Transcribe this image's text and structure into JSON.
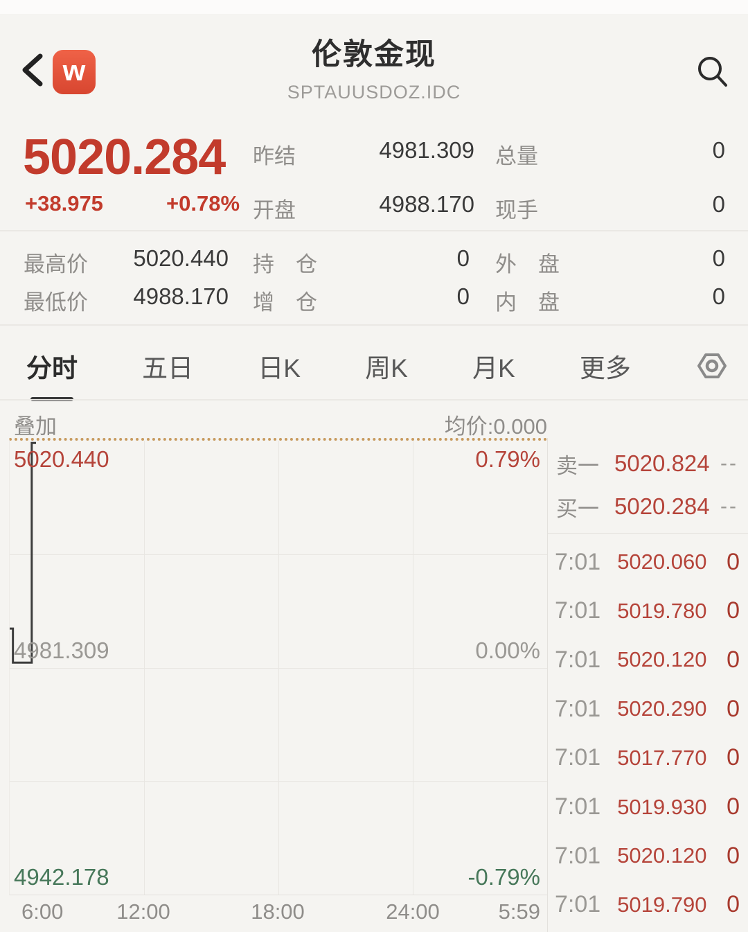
{
  "header": {
    "title": "伦敦金现",
    "subtitle": "SPTAUUSDOZ.IDC",
    "logo_letter": "w"
  },
  "quote": {
    "last_price": "5020.284",
    "change": "+38.975",
    "change_pct": "+0.78%",
    "prev_close_label": "昨结",
    "prev_close": "4981.309",
    "open_label": "开盘",
    "open": "4988.170",
    "total_volume_label": "总量",
    "total_volume": "0",
    "current_volume_label": "现手",
    "current_volume": "0",
    "high_label": "最高价",
    "high": "5020.440",
    "low_label": "最低价",
    "low": "4988.170",
    "open_interest_label": "持　仓",
    "open_interest": "0",
    "oi_change_label": "增　仓",
    "oi_change": "0",
    "outer_disk_label": "外　盘",
    "outer_disk": "0",
    "inner_disk_label": "内　盘",
    "inner_disk": "0"
  },
  "tabs": [
    {
      "label": "分时",
      "active": true
    },
    {
      "label": "五日",
      "active": false
    },
    {
      "label": "日K",
      "active": false
    },
    {
      "label": "周K",
      "active": false
    },
    {
      "label": "月K",
      "active": false
    },
    {
      "label": "更多",
      "active": false
    }
  ],
  "chart_header": {
    "overlay_label": "叠加",
    "avg_price_label": "均价:0.000"
  },
  "chart_data": {
    "type": "line",
    "title": "分时 (intraday minute line)",
    "ylim": [
      4942.178,
      5020.44
    ],
    "mid_value": 4981.309,
    "y_labels": {
      "high": "5020.440",
      "mid": "4981.309",
      "low": "4942.178",
      "pct_high": "0.79%",
      "pct_mid": "0.00%",
      "pct_low": "-0.79%"
    },
    "x_labels": [
      "6:00",
      "12:00",
      "18:00",
      "24:00",
      "5:59"
    ],
    "grid": "4x4",
    "line_color": "#3c3c3c",
    "line_points_pct": [
      [
        0,
        41.4
      ],
      [
        0.6,
        41.4
      ],
      [
        0.6,
        48.9
      ],
      [
        4.1,
        48.9
      ],
      [
        4.1,
        0.5
      ],
      [
        4.9,
        0.5
      ]
    ]
  },
  "order_book": {
    "sell": {
      "label": "卖一",
      "price": "5020.824",
      "vol": "--"
    },
    "buy": {
      "label": "买一",
      "price": "5020.284",
      "vol": "--"
    }
  },
  "trades": [
    {
      "time": "7:01",
      "price": "5020.060",
      "vol": "0"
    },
    {
      "time": "7:01",
      "price": "5019.780",
      "vol": "0"
    },
    {
      "time": "7:01",
      "price": "5020.120",
      "vol": "0"
    },
    {
      "time": "7:01",
      "price": "5020.290",
      "vol": "0"
    },
    {
      "time": "7:01",
      "price": "5017.770",
      "vol": "0"
    },
    {
      "time": "7:01",
      "price": "5019.930",
      "vol": "0"
    },
    {
      "time": "7:01",
      "price": "5020.120",
      "vol": "0"
    },
    {
      "time": "7:01",
      "price": "5019.790",
      "vol": "0"
    }
  ],
  "colors": {
    "up_red": "#c23b2c",
    "list_red": "#b5443a",
    "down_green": "#47785a",
    "neutral_grey": "#9a9894",
    "dotted_border": "#c79a5e"
  }
}
